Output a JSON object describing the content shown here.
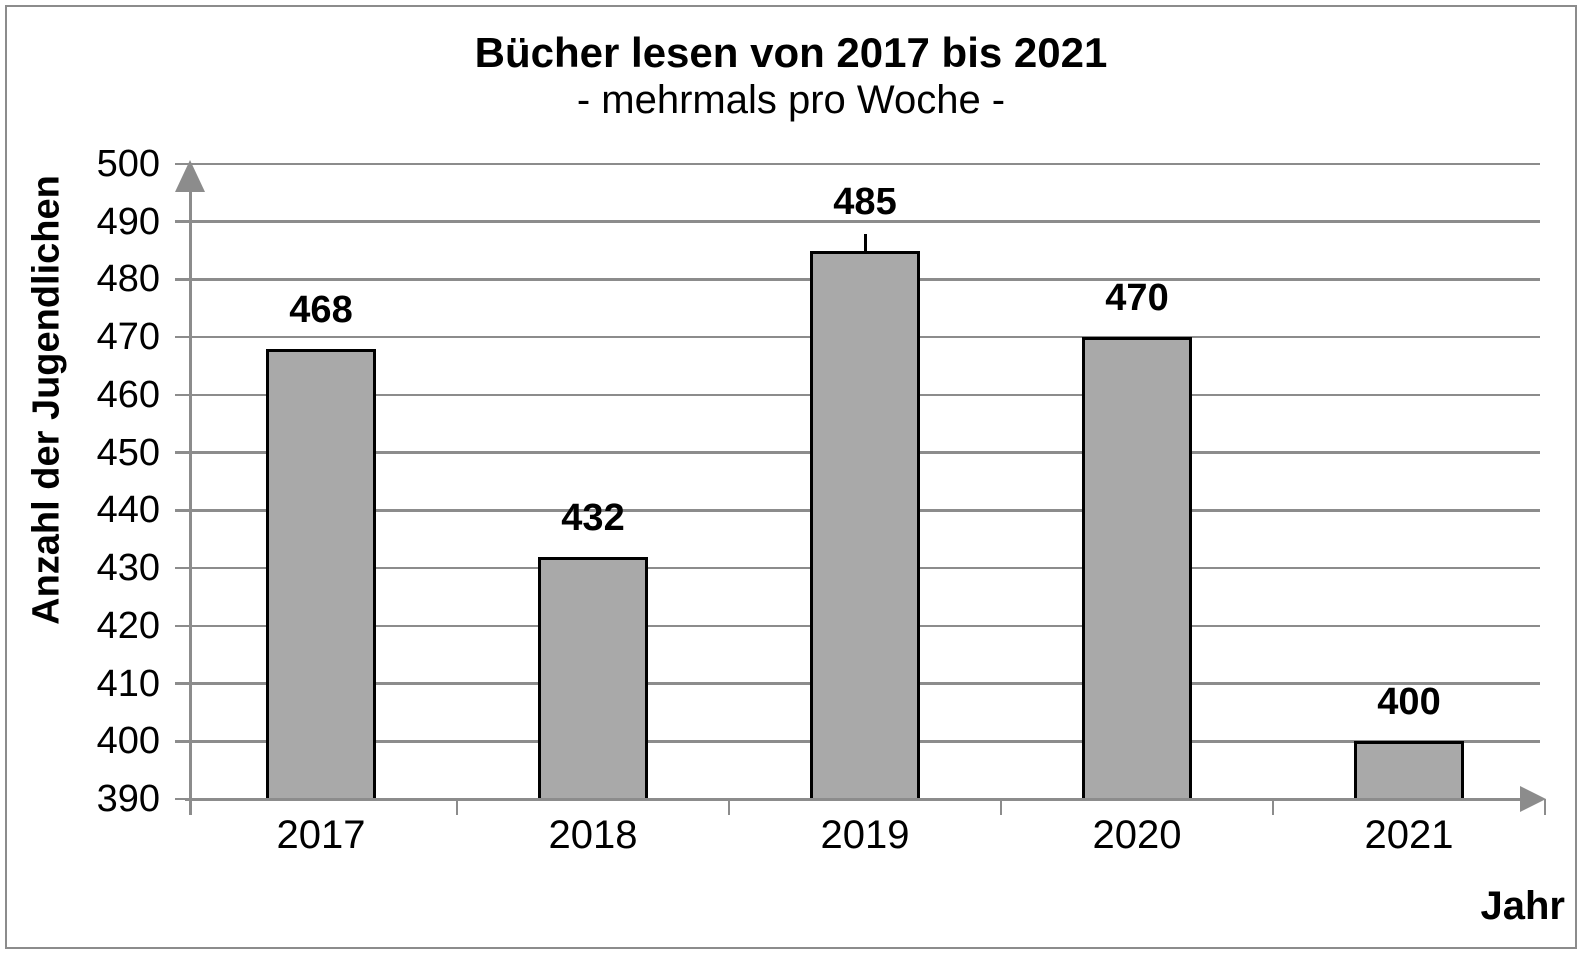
{
  "chart_data": {
    "type": "bar",
    "title": "Bücher lesen von 2017 bis 2021",
    "subtitle": "- mehrmals pro Woche -",
    "categories": [
      "2017",
      "2018",
      "2019",
      "2020",
      "2021"
    ],
    "values": [
      468,
      432,
      485,
      470,
      400
    ],
    "xlabel": "Jahr",
    "ylabel": "Anzahl der Jugendlichen",
    "ylim": [
      390,
      500
    ],
    "yticks": [
      390,
      400,
      410,
      420,
      430,
      440,
      450,
      460,
      470,
      480,
      490,
      500
    ],
    "grid": true,
    "legend": false,
    "value_labels_above_bars": true,
    "label_leader_lines": [
      "2019"
    ],
    "colors": {
      "bar_fill": "#A9A9A9",
      "bar_border": "#000000",
      "axis_and_grid": "#8C8C8C",
      "text": "#000000",
      "background": "#FFFFFF"
    }
  }
}
